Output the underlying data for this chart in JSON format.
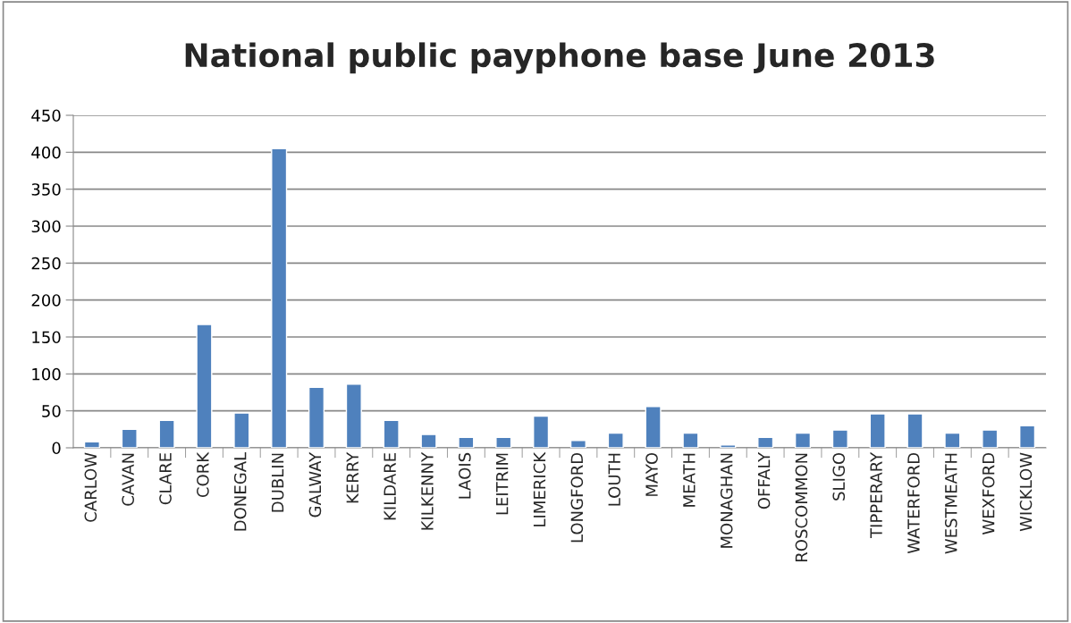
{
  "chart_data": {
    "type": "bar",
    "title": "National public payphone base June 2013",
    "categories": [
      "CARLOW",
      "CAVAN",
      "CLARE",
      "CORK",
      "DONEGAL",
      "DUBLIN",
      "GALWAY",
      "KERRY",
      "KILDARE",
      "KILKENNY",
      "LAOIS",
      "LEITRIM",
      "LIMERICK",
      "LONGFORD",
      "LOUTH",
      "MAYO",
      "MEATH",
      "MONAGHAN",
      "OFFALY",
      "ROSCOMMON",
      "SLIGO",
      "TIPPERARY",
      "WATERFORD",
      "WESTMEATH",
      "WEXFORD",
      "WICKLOW"
    ],
    "values": [
      8,
      25,
      37,
      167,
      47,
      405,
      82,
      86,
      37,
      18,
      14,
      14,
      43,
      10,
      20,
      56,
      20,
      4,
      14,
      20,
      24,
      46,
      46,
      20,
      24,
      30
    ],
    "color": "#4f81bd",
    "ylim": [
      0,
      450
    ],
    "yticks": [
      0,
      50,
      100,
      150,
      200,
      250,
      300,
      350,
      400,
      450
    ],
    "grid": "y",
    "legend": false
  }
}
